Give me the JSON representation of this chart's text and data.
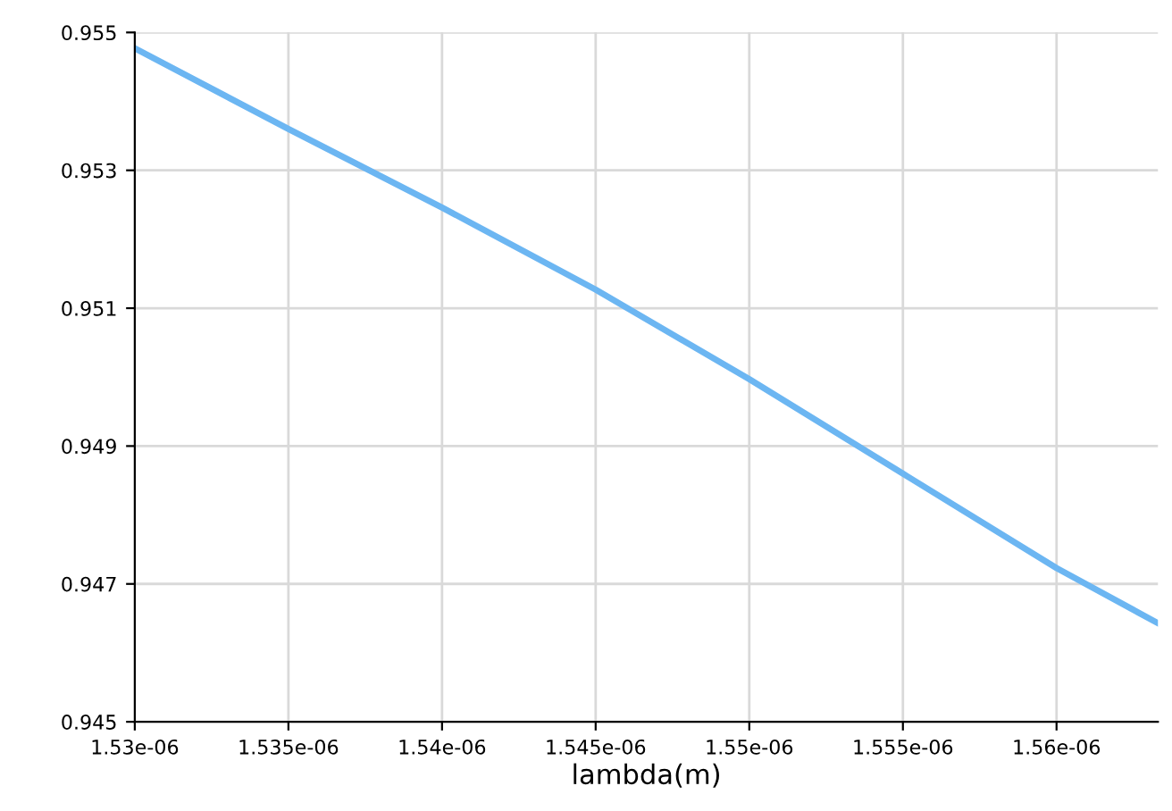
{
  "chart_data": {
    "type": "line",
    "xlabel": "lambda(m)",
    "x": [
      1.53e-06,
      1.535e-06,
      1.54e-06,
      1.545e-06,
      1.55e-06,
      1.555e-06,
      1.56e-06,
      1.5633e-06
    ],
    "series": [
      {
        "color": "#6cb6f2",
        "values": [
          0.95477,
          0.9536,
          0.95246,
          0.95127,
          0.94997,
          0.9486,
          0.94723,
          0.94643
        ]
      }
    ],
    "xlim": [
      1.53e-06,
      1.5633e-06
    ],
    "ylim": [
      0.945,
      0.955
    ],
    "xticks": [
      {
        "value": 1.53e-06,
        "label": "1.53e-06"
      },
      {
        "value": 1.535e-06,
        "label": "1.535e-06"
      },
      {
        "value": 1.54e-06,
        "label": "1.54e-06"
      },
      {
        "value": 1.545e-06,
        "label": "1.545e-06"
      },
      {
        "value": 1.55e-06,
        "label": "1.55e-06"
      },
      {
        "value": 1.555e-06,
        "label": "1.555e-06"
      },
      {
        "value": 1.56e-06,
        "label": "1.56e-06"
      }
    ],
    "yticks": [
      0.945,
      0.947,
      0.949,
      0.951,
      0.953,
      0.955
    ],
    "grid": true,
    "marker": "none",
    "line_style": "solid"
  }
}
